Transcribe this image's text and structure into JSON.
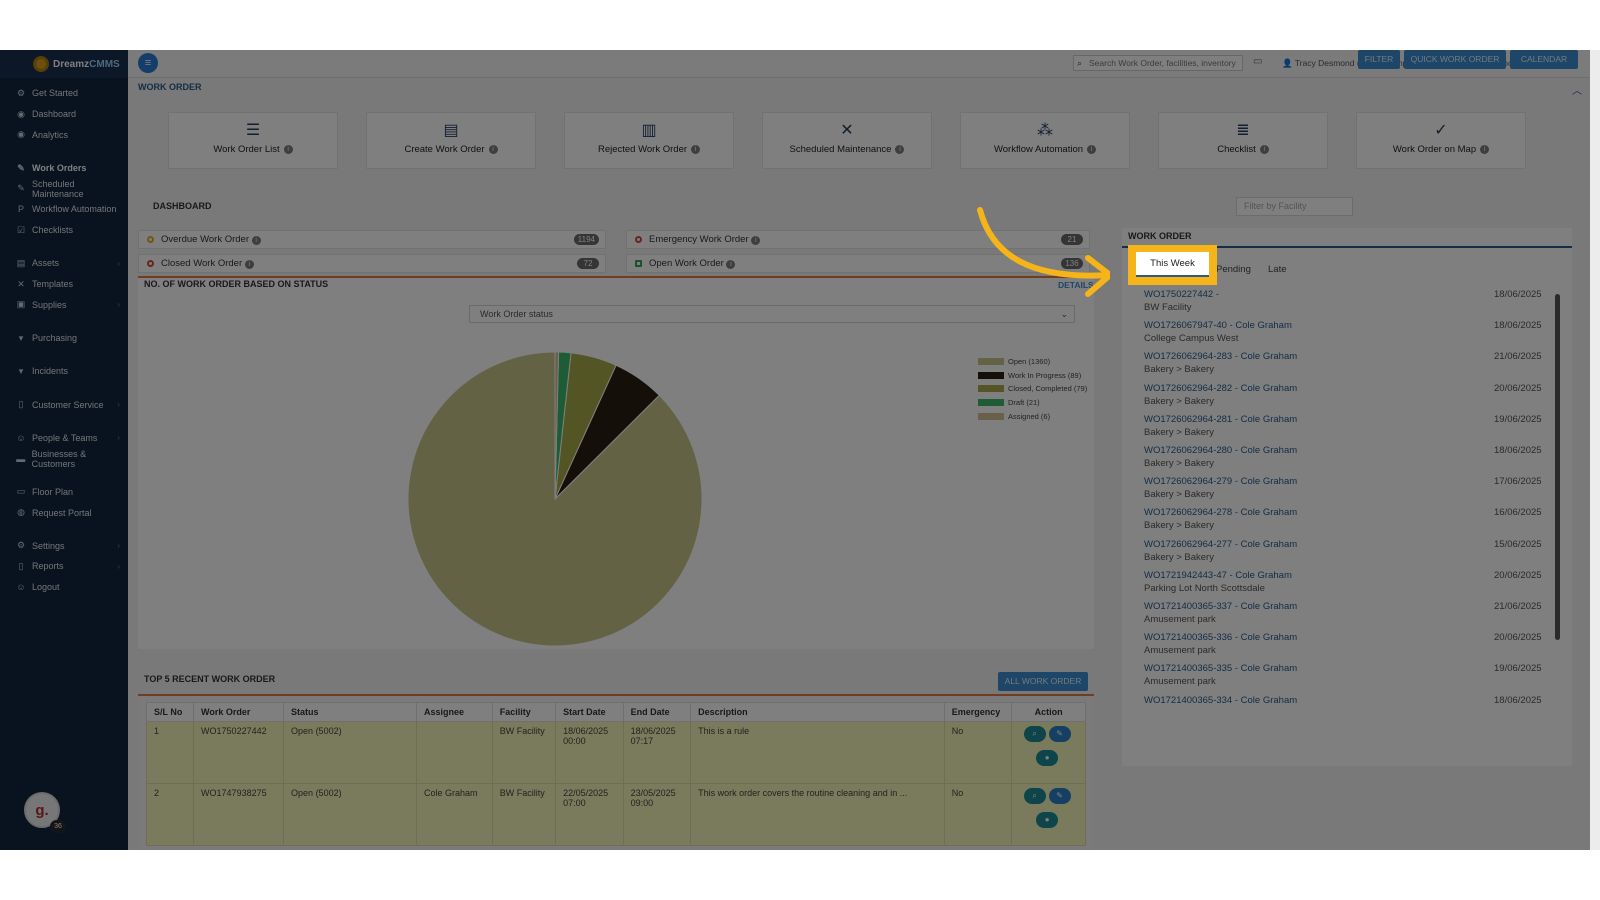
{
  "app": {
    "brand_a": "Dreamz",
    "brand_b": "CMMS"
  },
  "sidebar": {
    "items": [
      {
        "label": "Get Started",
        "icon": "rocket-icon",
        "glyph": "⚙",
        "gap": false,
        "chev": false
      },
      {
        "label": "Dashboard",
        "icon": "dashboard-icon",
        "glyph": "◉",
        "gap": false,
        "chev": false
      },
      {
        "label": "Analytics",
        "icon": "analytics-icon",
        "glyph": "◉",
        "gap": false,
        "chev": false
      },
      {
        "label": "Work Orders",
        "icon": "wrench-icon",
        "glyph": "✎",
        "gap": true,
        "chev": false,
        "active": true
      },
      {
        "label": "Scheduled Maintenance",
        "icon": "wrench-icon",
        "glyph": "✎",
        "gap": false,
        "chev": false
      },
      {
        "label": "Workflow Automation",
        "icon": "workflow-icon",
        "glyph": "P",
        "gap": false,
        "chev": false
      },
      {
        "label": "Checklists",
        "icon": "checklist-icon",
        "glyph": "☑",
        "gap": false,
        "chev": false
      },
      {
        "label": "Assets",
        "icon": "assets-icon",
        "glyph": "▤",
        "gap": true,
        "chev": true
      },
      {
        "label": "Templates",
        "icon": "templates-icon",
        "glyph": "✕",
        "gap": false,
        "chev": false
      },
      {
        "label": "Supplies",
        "icon": "supplies-icon",
        "glyph": "▣",
        "gap": false,
        "chev": true
      },
      {
        "label": "Purchasing",
        "icon": "cart-icon",
        "glyph": "▾",
        "gap": true,
        "chev": false
      },
      {
        "label": "Incidents",
        "icon": "incidents-icon",
        "glyph": "▾",
        "gap": true,
        "chev": false
      },
      {
        "label": "Customer Service",
        "icon": "document-icon",
        "glyph": "▯",
        "gap": true,
        "chev": true
      },
      {
        "label": "People & Teams",
        "icon": "people-icon",
        "glyph": "☺",
        "gap": true,
        "chev": true
      },
      {
        "label": "Businesses & Customers",
        "icon": "business-icon",
        "glyph": "▬",
        "gap": false,
        "chev": false
      },
      {
        "label": "Floor Plan",
        "icon": "floorplan-icon",
        "glyph": "▭",
        "gap": true,
        "chev": false
      },
      {
        "label": "Request Portal",
        "icon": "chat-icon",
        "glyph": "◍",
        "gap": false,
        "chev": false
      },
      {
        "label": "Settings",
        "icon": "gear-icon",
        "glyph": "⚙",
        "gap": true,
        "chev": true
      },
      {
        "label": "Reports",
        "icon": "reports-icon",
        "glyph": "▯",
        "gap": false,
        "chev": true
      },
      {
        "label": "Logout",
        "icon": "logout-icon",
        "glyph": "☺",
        "gap": false,
        "chev": false
      }
    ],
    "avatar_letter": "g.",
    "avatar_badge": "36"
  },
  "topbar": {
    "search_placeholder": "Search Work Order, facilities, inventory",
    "user": "Tracy Desmond (Demo Company - Asset and Maintenance Management)"
  },
  "section_title": "WORK ORDER",
  "cards": [
    {
      "label": "Work Order List",
      "icon": "list-icon",
      "glyph": "☰"
    },
    {
      "label": "Create Work Order",
      "icon": "file-icon",
      "glyph": "▤"
    },
    {
      "label": "Rejected Work Order",
      "icon": "rejected-icon",
      "glyph": "▥"
    },
    {
      "label": "Scheduled Maintenance",
      "icon": "tools-icon",
      "glyph": "✕"
    },
    {
      "label": "Workflow Automation",
      "icon": "workflow-icon",
      "glyph": "⁂"
    },
    {
      "label": "Checklist",
      "icon": "checklist-icon",
      "glyph": "≣"
    },
    {
      "label": "Work Order on Map",
      "icon": "map-check-icon",
      "glyph": "✓"
    }
  ],
  "dashboard": {
    "title": "DASHBOARD",
    "filter_placeholder": "Filter by Facility",
    "buttons": {
      "filter": "FILTER",
      "quick": "QUICK WORK ORDER",
      "calendar": "CALENDAR"
    },
    "stats": [
      {
        "label": "Overdue Work Order",
        "count": "1194"
      },
      {
        "label": "Emergency Work Order",
        "count": "21"
      },
      {
        "label": "Closed Work Order",
        "count": "72"
      },
      {
        "label": "Open Work Order",
        "count": "136"
      }
    ],
    "status_title": "NO. OF WORK ORDER BASED ON STATUS",
    "details": "DETAILS",
    "status_select": "Work Order status"
  },
  "chart_data": {
    "type": "pie",
    "labels": [
      "Open (1360)",
      "Work In Progress (89)",
      "Closed, Completed (79)",
      "Draft (21)",
      "Assigned (6)"
    ],
    "values": [
      1360,
      89,
      79,
      21,
      6
    ],
    "colors": [
      "#c9c48a",
      "#2a1e12",
      "#a9aa49",
      "#3db96c",
      "#d2c094"
    ],
    "legend": "right"
  },
  "recent": {
    "title": "TOP 5 RECENT WORK ORDER",
    "all_button": "ALL WORK ORDER",
    "headers": [
      "S/L No",
      "Work Order",
      "Status",
      "Assignee",
      "Facility",
      "Start Date",
      "End Date",
      "Description",
      "Emergency",
      "Action"
    ],
    "rows": [
      {
        "sl": "1",
        "wo": "WO1750227442",
        "status": "Open (5002)",
        "assignee": "",
        "facility": "BW Facility",
        "start": "18/06/2025 00:00",
        "end": "18/06/2025 07:17",
        "desc": "This is a rule",
        "emergency": "No"
      },
      {
        "sl": "2",
        "wo": "WO1747938275",
        "status": "Open (5002)",
        "assignee": "Cole Graham",
        "facility": "BW Facility",
        "start": "22/05/2025 07:00",
        "end": "23/05/2025 09:00",
        "desc": "This work order covers the routine cleaning and in ...",
        "emergency": "No"
      }
    ]
  },
  "wo_panel": {
    "title": "WORK ORDER",
    "tabs": [
      "This Week",
      "Pending",
      "Late"
    ],
    "items": [
      {
        "link": "WO1750227442 -",
        "facility": "BW Facility",
        "date": "18/06/2025"
      },
      {
        "link": "WO1726067947-40 - Cole Graham",
        "facility": "College Campus West",
        "date": "18/06/2025"
      },
      {
        "link": "WO1726062964-283 - Cole Graham",
        "facility": "Bakery > Bakery",
        "date": "21/06/2025"
      },
      {
        "link": "WO1726062964-282 - Cole Graham",
        "facility": "Bakery > Bakery",
        "date": "20/06/2025"
      },
      {
        "link": "WO1726062964-281 - Cole Graham",
        "facility": "Bakery > Bakery",
        "date": "19/06/2025"
      },
      {
        "link": "WO1726062964-280 - Cole Graham",
        "facility": "Bakery > Bakery",
        "date": "18/06/2025"
      },
      {
        "link": "WO1726062964-279 - Cole Graham",
        "facility": "Bakery > Bakery",
        "date": "17/06/2025"
      },
      {
        "link": "WO1726062964-278 - Cole Graham",
        "facility": "Bakery > Bakery",
        "date": "16/06/2025"
      },
      {
        "link": "WO1726062964-277 - Cole Graham",
        "facility": "Bakery > Bakery",
        "date": "15/06/2025"
      },
      {
        "link": "WO1721942443-47 - Cole Graham",
        "facility": "Parking Lot North Scottsdale",
        "date": "20/06/2025"
      },
      {
        "link": "WO1721400365-337 - Cole Graham",
        "facility": "Amusement park",
        "date": "21/06/2025"
      },
      {
        "link": "WO1721400365-336 - Cole Graham",
        "facility": "Amusement park",
        "date": "20/06/2025"
      },
      {
        "link": "WO1721400365-335 - Cole Graham",
        "facility": "Amusement park",
        "date": "19/06/2025"
      },
      {
        "link": "WO1721400365-334 - Cole Graham",
        "facility": "",
        "date": "18/06/2025"
      }
    ]
  },
  "colors": {
    "accent": "#3c8dd0",
    "sidebar": "#12273f",
    "highlight": "#f4b41a",
    "table_row": "#f4f4b8"
  }
}
